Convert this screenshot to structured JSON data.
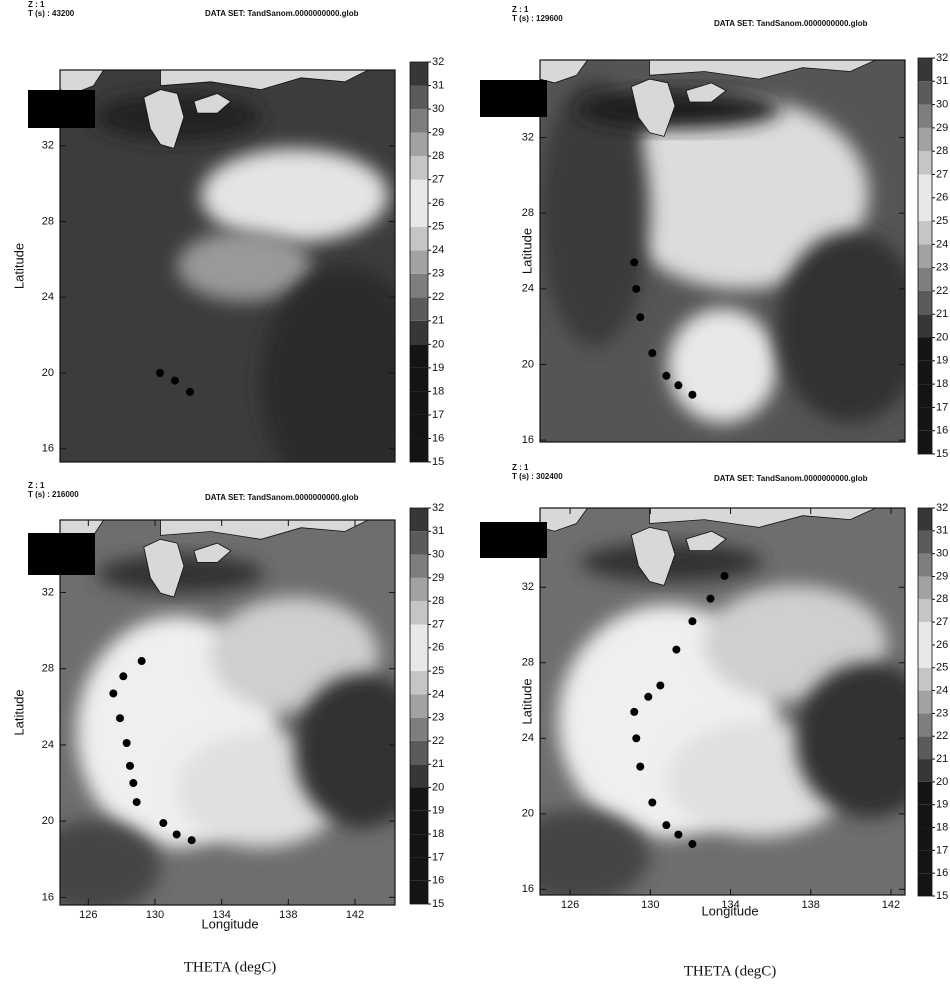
{
  "colorbar": {
    "ticks": [
      15,
      16,
      17,
      18,
      19,
      20,
      21,
      22,
      23,
      24,
      25,
      26,
      27,
      28,
      29,
      30,
      31,
      32
    ]
  },
  "panels": [
    {
      "z": "Z : 1",
      "time": "T (s) : 43200",
      "dataset": "DATA SET: TandSanom.0000000000.glob",
      "ylabel": "Latitude",
      "xlim": [
        124.3,
        144.4
      ],
      "ylim": [
        15.3,
        36
      ],
      "yticks": [
        16,
        20,
        24,
        28,
        32
      ],
      "track": {
        "lon": [
          130.3,
          131.2,
          132.1
        ],
        "lat": [
          20.0,
          19.6,
          19.0
        ]
      }
    },
    {
      "z": "Z : 1",
      "time": "T (s) : 129600",
      "dataset": "DATA SET: TandSanom.0000000000.glob",
      "ylabel": "Latitude",
      "xlim": [
        124.5,
        142.7
      ],
      "ylim": [
        15.9,
        36.1
      ],
      "yticks": [
        16,
        20,
        24,
        28,
        32
      ],
      "track": {
        "lon": [
          129.2,
          129.3,
          129.5,
          130.1,
          130.8,
          131.4,
          132.1
        ],
        "lat": [
          25.4,
          24.0,
          22.5,
          20.6,
          19.4,
          18.9,
          18.4
        ]
      }
    },
    {
      "z": "Z : 1",
      "time": "T (s) : 216000",
      "dataset": "DATA SET: TandSanom.0000000000.glob",
      "ylabel": "Latitude",
      "xlabel": "Longitude",
      "caption": "THETA (degC)",
      "xlim": [
        124.3,
        144.4
      ],
      "ylim": [
        15.6,
        35.8
      ],
      "yticks": [
        16,
        20,
        24,
        28,
        32
      ],
      "xticks": [
        126,
        130,
        134,
        138,
        142
      ],
      "track": {
        "lon": [
          129.2,
          128.1,
          127.5,
          127.9,
          128.3,
          128.5,
          128.7,
          128.9,
          130.5,
          131.3,
          132.2
        ],
        "lat": [
          28.4,
          27.6,
          26.7,
          25.4,
          24.1,
          22.9,
          22.0,
          21.0,
          19.9,
          19.3,
          19.0
        ]
      }
    },
    {
      "z": "Z : 1",
      "time": "T (s) : 302400",
      "dataset": "DATA SET: TandSanom.0000000000.glob",
      "ylabel": "Latitude",
      "xlabel": "Longitude",
      "caption": "THETA (degC)",
      "xlim": [
        124.5,
        142.7
      ],
      "ylim": [
        15.7,
        36.2
      ],
      "yticks": [
        16,
        20,
        24,
        28,
        32
      ],
      "xticks": [
        126,
        130,
        134,
        138,
        142
      ],
      "track": {
        "lon": [
          133.7,
          133.0,
          132.1,
          131.3,
          130.5,
          129.9,
          129.2,
          129.3,
          129.5,
          130.1,
          130.8,
          131.4,
          132.1
        ],
        "lat": [
          32.6,
          31.4,
          30.2,
          28.7,
          26.8,
          26.2,
          25.4,
          24.0,
          22.5,
          20.6,
          19.4,
          18.9,
          18.4
        ]
      }
    }
  ]
}
